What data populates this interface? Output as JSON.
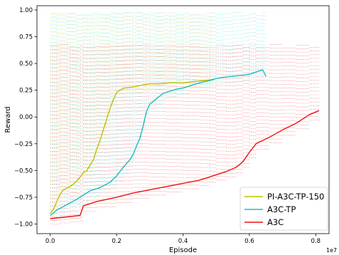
{
  "chart_data": {
    "type": "line",
    "xlabel": "Episode",
    "ylabel": "Reward",
    "x_offset_label": "1e7",
    "xlim": [
      -0.04,
      0.84
    ],
    "ylim": [
      -1.09,
      1.04
    ],
    "x_ticks": [
      0.0,
      0.2,
      0.4,
      0.6,
      0.8
    ],
    "x_tick_labels": [
      "0.0",
      "0.2",
      "0.4",
      "0.6",
      "0.8"
    ],
    "y_ticks": [
      -1.0,
      -0.75,
      -0.5,
      -0.25,
      0.0,
      0.25,
      0.5,
      0.75,
      1.0
    ],
    "y_tick_labels": [
      "−1.00",
      "−0.75",
      "−0.50",
      "−0.25",
      "0.00",
      "0.25",
      "0.50",
      "0.75",
      "1.00"
    ],
    "grid": false,
    "legend_position": "bottom-right",
    "series": [
      {
        "name": "PI-A3C-TP-150",
        "color": "#bfbf00",
        "band_color": "#dede4a",
        "band_top": 0.98,
        "x": [
          0.0,
          0.01,
          0.02,
          0.03,
          0.04,
          0.06,
          0.08,
          0.1,
          0.11,
          0.13,
          0.14,
          0.15,
          0.16,
          0.17,
          0.18,
          0.19,
          0.2,
          0.22,
          0.25,
          0.28,
          0.3,
          0.33,
          0.36,
          0.4,
          0.43,
          0.46,
          0.49
        ],
        "y": [
          -0.9,
          -0.86,
          -0.79,
          -0.72,
          -0.68,
          -0.65,
          -0.6,
          -0.52,
          -0.5,
          -0.4,
          -0.3,
          -0.22,
          -0.12,
          -0.02,
          0.08,
          0.16,
          0.23,
          0.27,
          0.28,
          0.3,
          0.31,
          0.31,
          0.32,
          0.32,
          0.33,
          0.34,
          0.35
        ]
      },
      {
        "name": "A3C-TP",
        "color": "#17bfbf",
        "band_color": "#4fdcdc",
        "band_top": 0.98,
        "x": [
          0.0,
          0.02,
          0.05,
          0.08,
          0.1,
          0.12,
          0.15,
          0.18,
          0.2,
          0.22,
          0.24,
          0.25,
          0.26,
          0.27,
          0.28,
          0.29,
          0.3,
          0.32,
          0.34,
          0.36,
          0.38,
          0.4,
          0.42,
          0.45,
          0.48,
          0.5,
          0.52,
          0.55,
          0.58,
          0.6,
          0.62,
          0.64,
          0.65
        ],
        "y": [
          -0.92,
          -0.87,
          -0.82,
          -0.77,
          -0.73,
          -0.69,
          -0.66,
          -0.61,
          -0.55,
          -0.47,
          -0.4,
          -0.35,
          -0.27,
          -0.2,
          -0.08,
          0.05,
          0.12,
          0.17,
          0.22,
          0.24,
          0.26,
          0.27,
          0.29,
          0.32,
          0.34,
          0.36,
          0.37,
          0.38,
          0.39,
          0.4,
          0.42,
          0.44,
          0.38
        ]
      },
      {
        "name": "A3C",
        "color": "#ee1111",
        "band_color": "#ee4444",
        "band_top": 0.68,
        "x": [
          0.0,
          0.03,
          0.06,
          0.09,
          0.1,
          0.14,
          0.2,
          0.25,
          0.3,
          0.35,
          0.4,
          0.45,
          0.48,
          0.5,
          0.53,
          0.56,
          0.58,
          0.6,
          0.62,
          0.66,
          0.7,
          0.74,
          0.78,
          0.81
        ],
        "y": [
          -0.95,
          -0.94,
          -0.93,
          -0.92,
          -0.83,
          -0.79,
          -0.75,
          -0.71,
          -0.68,
          -0.65,
          -0.62,
          -0.59,
          -0.56,
          -0.54,
          -0.51,
          -0.47,
          -0.42,
          -0.33,
          -0.25,
          -0.19,
          -0.12,
          -0.06,
          0.02,
          0.06
        ]
      }
    ]
  }
}
